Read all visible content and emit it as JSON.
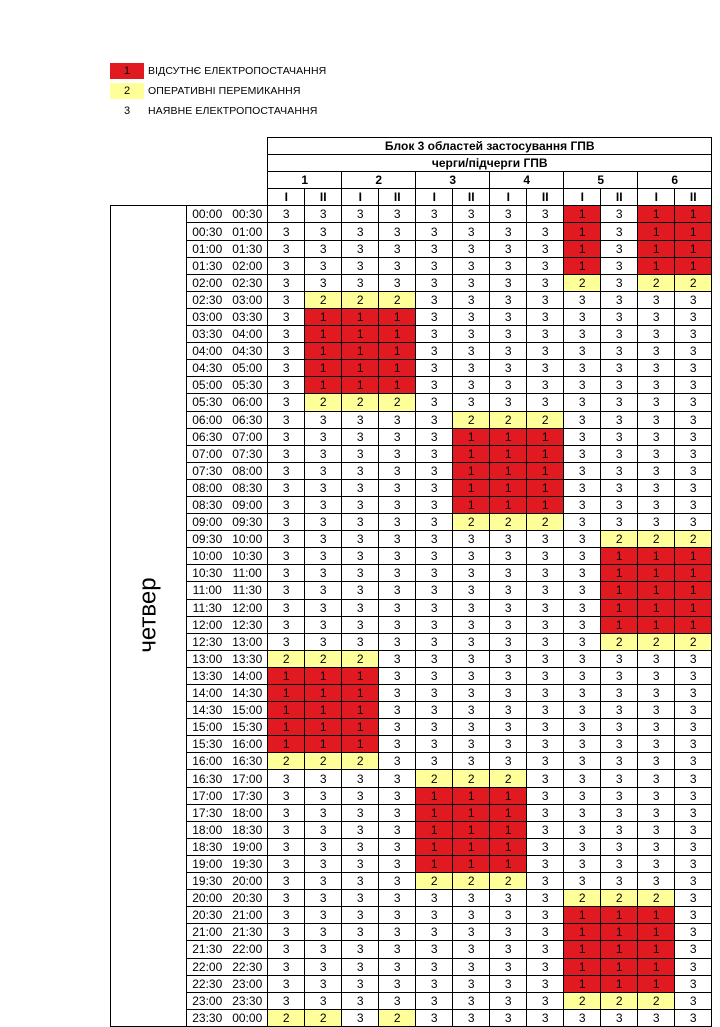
{
  "legend": [
    {
      "code": "1",
      "label": "ВІДСУТНЄ ЕЛЕКТРОПОСТАЧАННЯ",
      "color": "#e11a22"
    },
    {
      "code": "2",
      "label": "ОПЕРАТИВНІ ПЕРЕМИКАННЯ",
      "color": "#ffff99"
    },
    {
      "code": "3",
      "label": "НАЯВНЕ ЕЛЕКТРОПОСТАЧАННЯ",
      "color": "#ffffff"
    }
  ],
  "table": {
    "title": "Блок 3 областей застосування ГПВ",
    "subtitle": "черги/підчерги ГПВ",
    "day": "четвер",
    "groups": [
      "1",
      "2",
      "3",
      "4",
      "5",
      "6"
    ],
    "subgroups": [
      "I",
      "II",
      "I",
      "II",
      "I",
      "II",
      "I",
      "II",
      "I",
      "II",
      "I",
      "II"
    ],
    "rows": [
      {
        "from": "00:00",
        "to": "00:30",
        "v": [
          "3",
          "3",
          "3",
          "3",
          "3",
          "3",
          "3",
          "3",
          "1",
          "3",
          "1",
          "1"
        ]
      },
      {
        "from": "00:30",
        "to": "01:00",
        "v": [
          "3",
          "3",
          "3",
          "3",
          "3",
          "3",
          "3",
          "3",
          "1",
          "3",
          "1",
          "1"
        ]
      },
      {
        "from": "01:00",
        "to": "01:30",
        "v": [
          "3",
          "3",
          "3",
          "3",
          "3",
          "3",
          "3",
          "3",
          "1",
          "3",
          "1",
          "1"
        ]
      },
      {
        "from": "01:30",
        "to": "02:00",
        "v": [
          "3",
          "3",
          "3",
          "3",
          "3",
          "3",
          "3",
          "3",
          "1",
          "3",
          "1",
          "1"
        ]
      },
      {
        "from": "02:00",
        "to": "02:30",
        "v": [
          "3",
          "3",
          "3",
          "3",
          "3",
          "3",
          "3",
          "3",
          "2",
          "3",
          "2",
          "2"
        ]
      },
      {
        "from": "02:30",
        "to": "03:00",
        "v": [
          "3",
          "2",
          "2",
          "2",
          "3",
          "3",
          "3",
          "3",
          "3",
          "3",
          "3",
          "3"
        ]
      },
      {
        "from": "03:00",
        "to": "03:30",
        "v": [
          "3",
          "1",
          "1",
          "1",
          "3",
          "3",
          "3",
          "3",
          "3",
          "3",
          "3",
          "3"
        ]
      },
      {
        "from": "03:30",
        "to": "04:00",
        "v": [
          "3",
          "1",
          "1",
          "1",
          "3",
          "3",
          "3",
          "3",
          "3",
          "3",
          "3",
          "3"
        ]
      },
      {
        "from": "04:00",
        "to": "04:30",
        "v": [
          "3",
          "1",
          "1",
          "1",
          "3",
          "3",
          "3",
          "3",
          "3",
          "3",
          "3",
          "3"
        ]
      },
      {
        "from": "04:30",
        "to": "05:00",
        "v": [
          "3",
          "1",
          "1",
          "1",
          "3",
          "3",
          "3",
          "3",
          "3",
          "3",
          "3",
          "3"
        ]
      },
      {
        "from": "05:00",
        "to": "05:30",
        "v": [
          "3",
          "1",
          "1",
          "1",
          "3",
          "3",
          "3",
          "3",
          "3",
          "3",
          "3",
          "3"
        ]
      },
      {
        "from": "05:30",
        "to": "06:00",
        "v": [
          "3",
          "2",
          "2",
          "2",
          "3",
          "3",
          "3",
          "3",
          "3",
          "3",
          "3",
          "3"
        ]
      },
      {
        "from": "06:00",
        "to": "06:30",
        "v": [
          "3",
          "3",
          "3",
          "3",
          "3",
          "2",
          "2",
          "2",
          "3",
          "3",
          "3",
          "3"
        ]
      },
      {
        "from": "06:30",
        "to": "07:00",
        "v": [
          "3",
          "3",
          "3",
          "3",
          "3",
          "1",
          "1",
          "1",
          "3",
          "3",
          "3",
          "3"
        ]
      },
      {
        "from": "07:00",
        "to": "07:30",
        "v": [
          "3",
          "3",
          "3",
          "3",
          "3",
          "1",
          "1",
          "1",
          "3",
          "3",
          "3",
          "3"
        ]
      },
      {
        "from": "07:30",
        "to": "08:00",
        "v": [
          "3",
          "3",
          "3",
          "3",
          "3",
          "1",
          "1",
          "1",
          "3",
          "3",
          "3",
          "3"
        ]
      },
      {
        "from": "08:00",
        "to": "08:30",
        "v": [
          "3",
          "3",
          "3",
          "3",
          "3",
          "1",
          "1",
          "1",
          "3",
          "3",
          "3",
          "3"
        ]
      },
      {
        "from": "08:30",
        "to": "09:00",
        "v": [
          "3",
          "3",
          "3",
          "3",
          "3",
          "1",
          "1",
          "1",
          "3",
          "3",
          "3",
          "3"
        ]
      },
      {
        "from": "09:00",
        "to": "09:30",
        "v": [
          "3",
          "3",
          "3",
          "3",
          "3",
          "2",
          "2",
          "2",
          "3",
          "3",
          "3",
          "3"
        ]
      },
      {
        "from": "09:30",
        "to": "10:00",
        "v": [
          "3",
          "3",
          "3",
          "3",
          "3",
          "3",
          "3",
          "3",
          "3",
          "2",
          "2",
          "2"
        ]
      },
      {
        "from": "10:00",
        "to": "10:30",
        "v": [
          "3",
          "3",
          "3",
          "3",
          "3",
          "3",
          "3",
          "3",
          "3",
          "1",
          "1",
          "1"
        ]
      },
      {
        "from": "10:30",
        "to": "11:00",
        "v": [
          "3",
          "3",
          "3",
          "3",
          "3",
          "3",
          "3",
          "3",
          "3",
          "1",
          "1",
          "1"
        ]
      },
      {
        "from": "11:00",
        "to": "11:30",
        "v": [
          "3",
          "3",
          "3",
          "3",
          "3",
          "3",
          "3",
          "3",
          "3",
          "1",
          "1",
          "1"
        ]
      },
      {
        "from": "11:30",
        "to": "12:00",
        "v": [
          "3",
          "3",
          "3",
          "3",
          "3",
          "3",
          "3",
          "3",
          "3",
          "1",
          "1",
          "1"
        ]
      },
      {
        "from": "12:00",
        "to": "12:30",
        "v": [
          "3",
          "3",
          "3",
          "3",
          "3",
          "3",
          "3",
          "3",
          "3",
          "1",
          "1",
          "1"
        ]
      },
      {
        "from": "12:30",
        "to": "13:00",
        "v": [
          "3",
          "3",
          "3",
          "3",
          "3",
          "3",
          "3",
          "3",
          "3",
          "2",
          "2",
          "2"
        ]
      },
      {
        "from": "13:00",
        "to": "13:30",
        "v": [
          "2",
          "2",
          "2",
          "3",
          "3",
          "3",
          "3",
          "3",
          "3",
          "3",
          "3",
          "3"
        ]
      },
      {
        "from": "13:30",
        "to": "14:00",
        "v": [
          "1",
          "1",
          "1",
          "3",
          "3",
          "3",
          "3",
          "3",
          "3",
          "3",
          "3",
          "3"
        ]
      },
      {
        "from": "14:00",
        "to": "14:30",
        "v": [
          "1",
          "1",
          "1",
          "3",
          "3",
          "3",
          "3",
          "3",
          "3",
          "3",
          "3",
          "3"
        ]
      },
      {
        "from": "14:30",
        "to": "15:00",
        "v": [
          "1",
          "1",
          "1",
          "3",
          "3",
          "3",
          "3",
          "3",
          "3",
          "3",
          "3",
          "3"
        ]
      },
      {
        "from": "15:00",
        "to": "15:30",
        "v": [
          "1",
          "1",
          "1",
          "3",
          "3",
          "3",
          "3",
          "3",
          "3",
          "3",
          "3",
          "3"
        ]
      },
      {
        "from": "15:30",
        "to": "16:00",
        "v": [
          "1",
          "1",
          "1",
          "3",
          "3",
          "3",
          "3",
          "3",
          "3",
          "3",
          "3",
          "3"
        ]
      },
      {
        "from": "16:00",
        "to": "16:30",
        "v": [
          "2",
          "2",
          "2",
          "3",
          "3",
          "3",
          "3",
          "3",
          "3",
          "3",
          "3",
          "3"
        ]
      },
      {
        "from": "16:30",
        "to": "17:00",
        "v": [
          "3",
          "3",
          "3",
          "3",
          "2",
          "2",
          "2",
          "3",
          "3",
          "3",
          "3",
          "3"
        ]
      },
      {
        "from": "17:00",
        "to": "17:30",
        "v": [
          "3",
          "3",
          "3",
          "3",
          "1",
          "1",
          "1",
          "3",
          "3",
          "3",
          "3",
          "3"
        ]
      },
      {
        "from": "17:30",
        "to": "18:00",
        "v": [
          "3",
          "3",
          "3",
          "3",
          "1",
          "1",
          "1",
          "3",
          "3",
          "3",
          "3",
          "3"
        ]
      },
      {
        "from": "18:00",
        "to": "18:30",
        "v": [
          "3",
          "3",
          "3",
          "3",
          "1",
          "1",
          "1",
          "3",
          "3",
          "3",
          "3",
          "3"
        ]
      },
      {
        "from": "18:30",
        "to": "19:00",
        "v": [
          "3",
          "3",
          "3",
          "3",
          "1",
          "1",
          "1",
          "3",
          "3",
          "3",
          "3",
          "3"
        ]
      },
      {
        "from": "19:00",
        "to": "19:30",
        "v": [
          "3",
          "3",
          "3",
          "3",
          "1",
          "1",
          "1",
          "3",
          "3",
          "3",
          "3",
          "3"
        ]
      },
      {
        "from": "19:30",
        "to": "20:00",
        "v": [
          "3",
          "3",
          "3",
          "3",
          "2",
          "2",
          "2",
          "3",
          "3",
          "3",
          "3",
          "3"
        ]
      },
      {
        "from": "20:00",
        "to": "20:30",
        "v": [
          "3",
          "3",
          "3",
          "3",
          "3",
          "3",
          "3",
          "3",
          "2",
          "2",
          "2",
          "3"
        ]
      },
      {
        "from": "20:30",
        "to": "21:00",
        "v": [
          "3",
          "3",
          "3",
          "3",
          "3",
          "3",
          "3",
          "3",
          "1",
          "1",
          "1",
          "3"
        ]
      },
      {
        "from": "21:00",
        "to": "21:30",
        "v": [
          "3",
          "3",
          "3",
          "3",
          "3",
          "3",
          "3",
          "3",
          "1",
          "1",
          "1",
          "3"
        ]
      },
      {
        "from": "21:30",
        "to": "22:00",
        "v": [
          "3",
          "3",
          "3",
          "3",
          "3",
          "3",
          "3",
          "3",
          "1",
          "1",
          "1",
          "3"
        ]
      },
      {
        "from": "22:00",
        "to": "22:30",
        "v": [
          "3",
          "3",
          "3",
          "3",
          "3",
          "3",
          "3",
          "3",
          "1",
          "1",
          "1",
          "3"
        ]
      },
      {
        "from": "22:30",
        "to": "23:00",
        "v": [
          "3",
          "3",
          "3",
          "3",
          "3",
          "3",
          "3",
          "3",
          "1",
          "1",
          "1",
          "3"
        ]
      },
      {
        "from": "23:00",
        "to": "23:30",
        "v": [
          "3",
          "3",
          "3",
          "3",
          "3",
          "3",
          "3",
          "3",
          "2",
          "2",
          "2",
          "3"
        ]
      },
      {
        "from": "23:30",
        "to": "00:00",
        "v": [
          "2",
          "2",
          "3",
          "2",
          "3",
          "3",
          "3",
          "3",
          "3",
          "3",
          "3",
          "3"
        ]
      }
    ]
  }
}
